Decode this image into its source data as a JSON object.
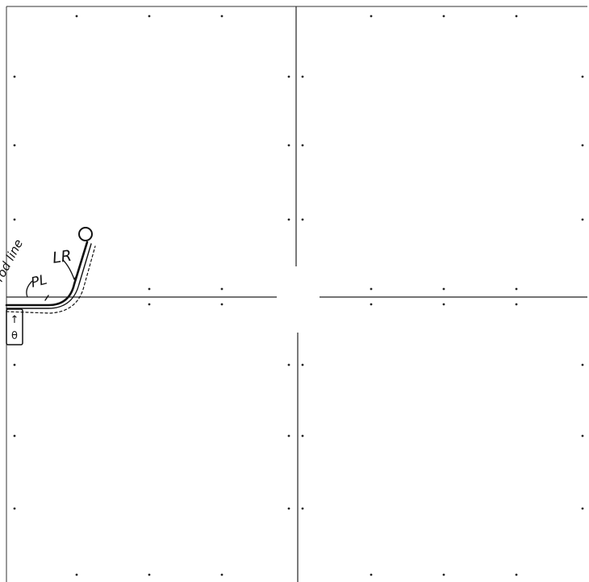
{
  "labels": {
    "rod_line": "rod line",
    "pl": "PL",
    "lr": "LR",
    "box_upper": "↑",
    "box_lower": "θ"
  },
  "colors": {
    "ink": "#111111",
    "grid": "#222222",
    "background": "#ffffff"
  }
}
